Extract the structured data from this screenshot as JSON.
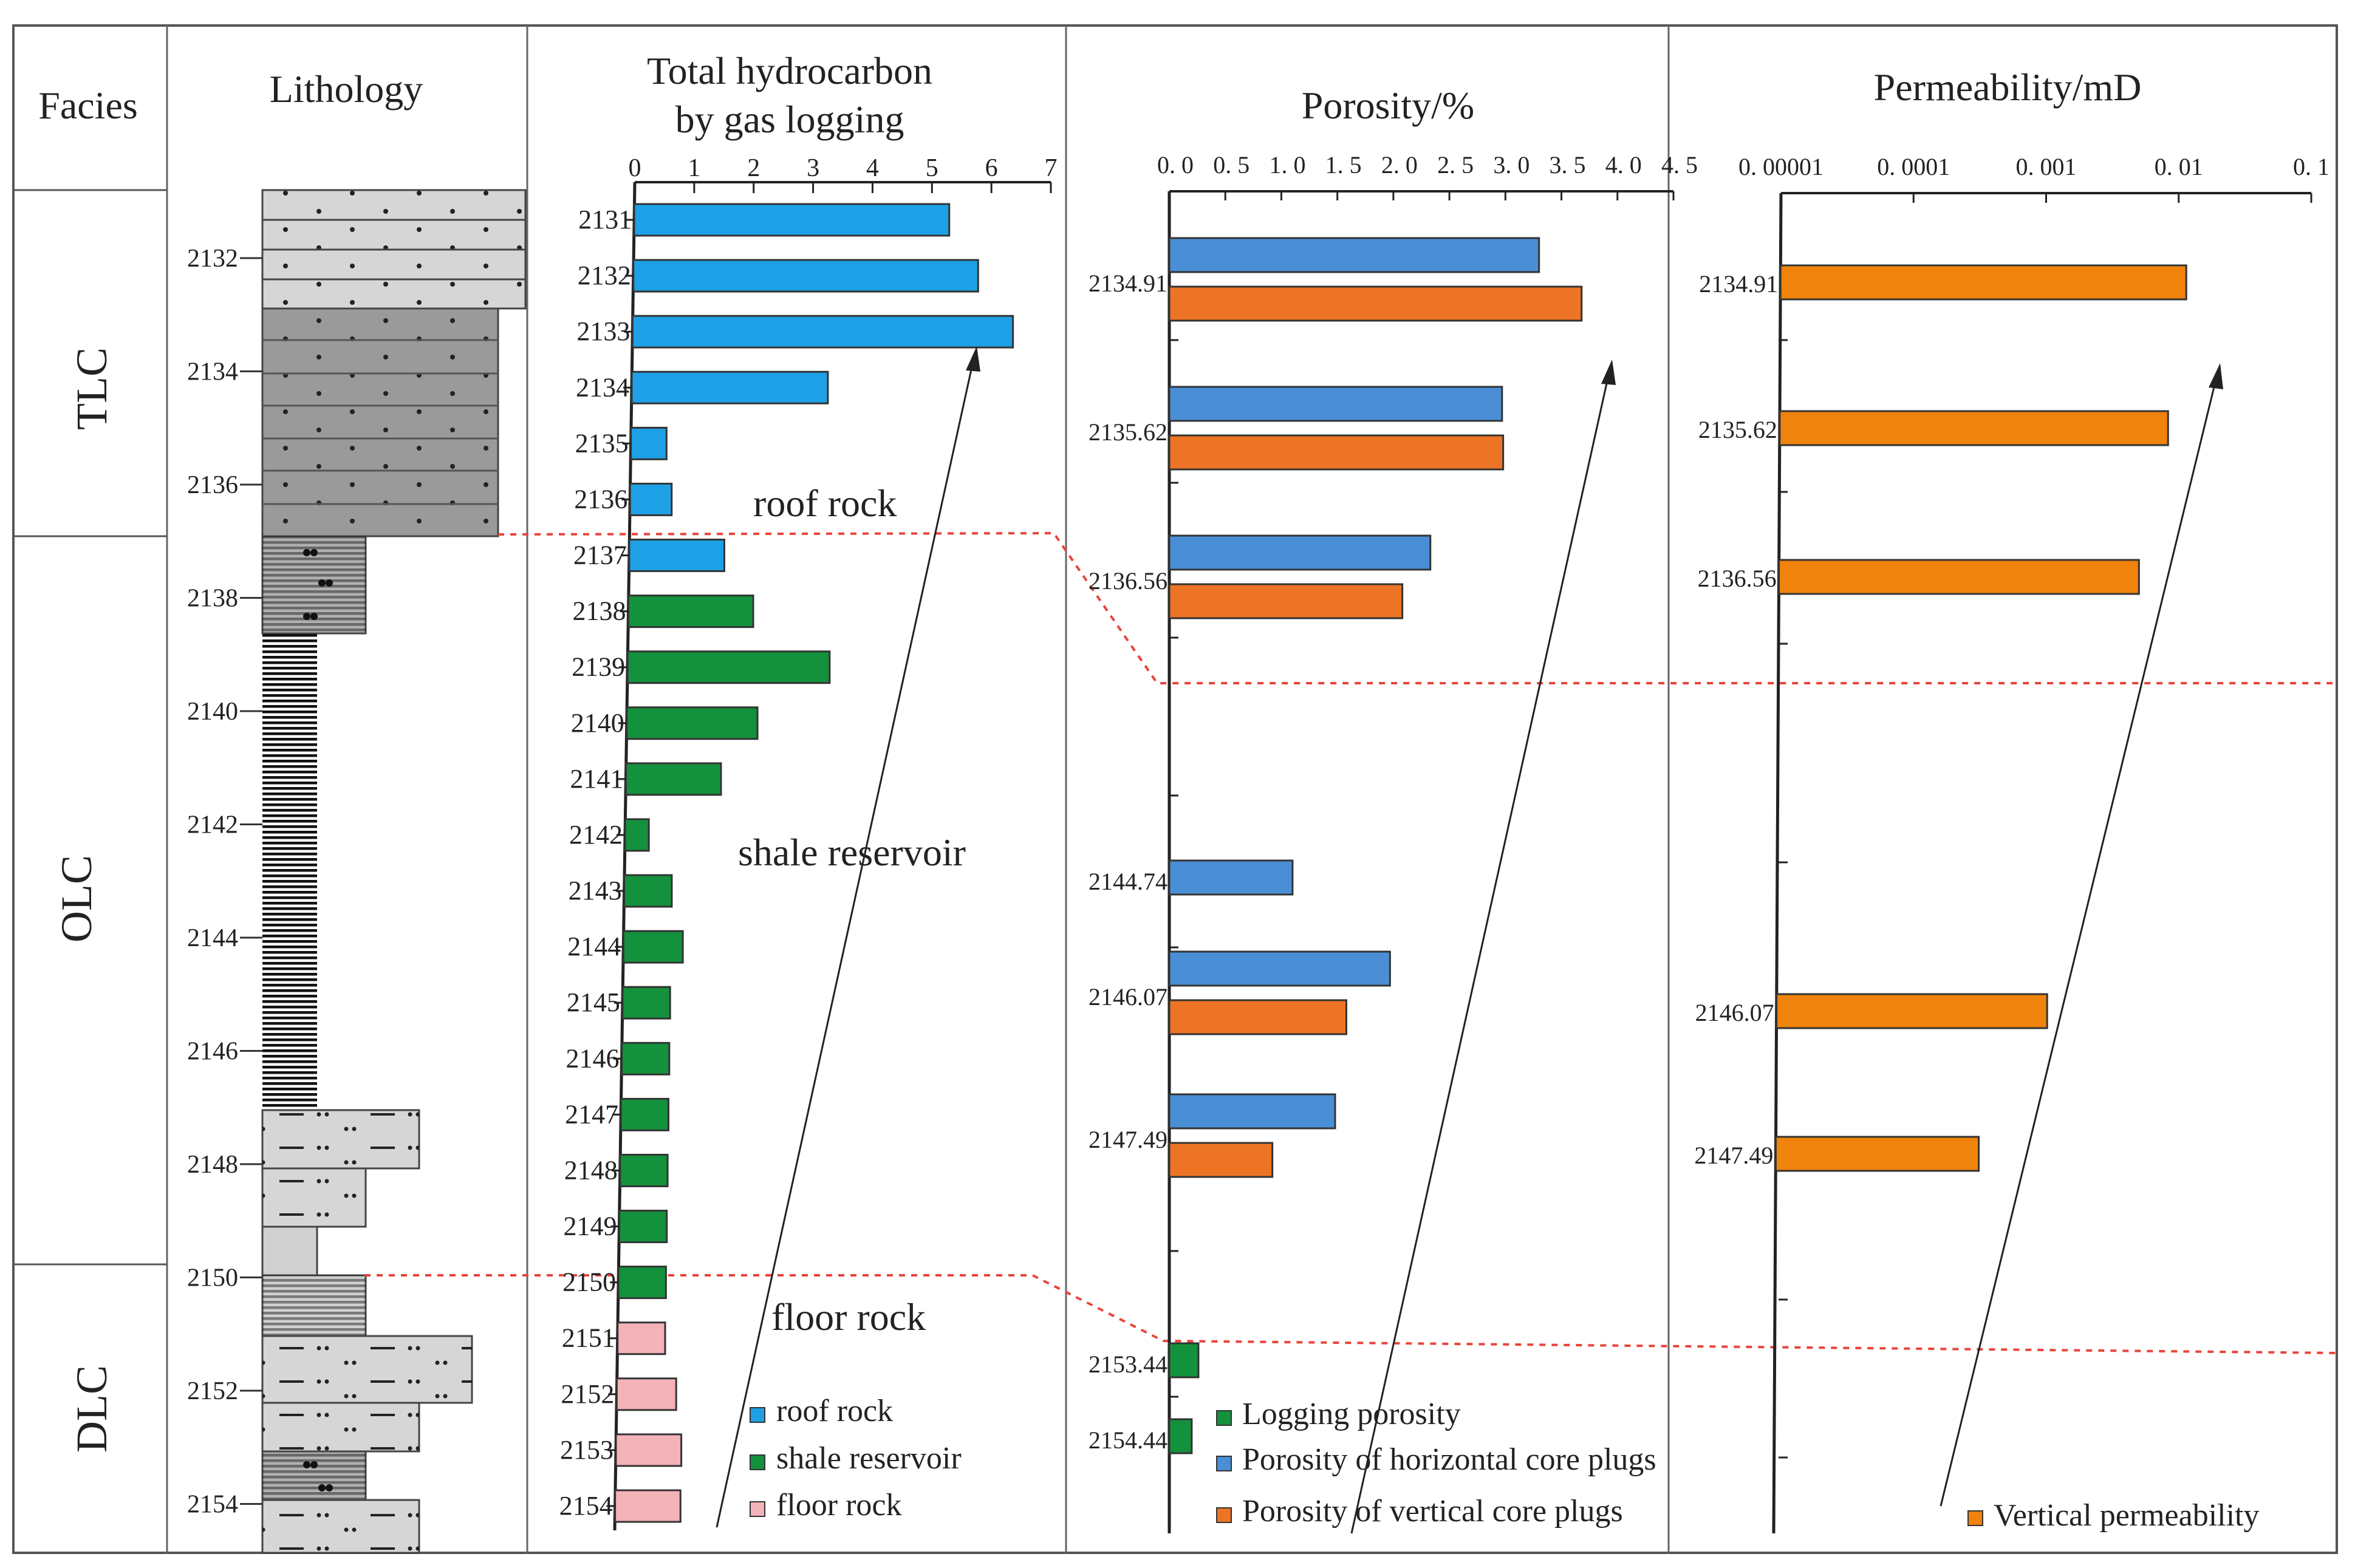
{
  "headers": {
    "facies": "Facies",
    "lithology": "Lithology",
    "thc_line1": "Total  hydrocarbon",
    "thc_line2": "by  gas  logging",
    "porosity": "Porosity/%",
    "permeability": "Permeability/mD"
  },
  "facies": [
    "TLC",
    "OLC",
    "DLC"
  ],
  "lithology_depth_ticks": [
    "2132",
    "2134",
    "2136",
    "2138",
    "2140",
    "2142",
    "2144",
    "2146",
    "2148",
    "2150",
    "2152",
    "2154"
  ],
  "zone_labels": {
    "roof": "roof rock",
    "shale": "shale reservoir",
    "floor": "floor rock"
  },
  "colors": {
    "roof": "#1ea0e6",
    "shale": "#14913c",
    "floor": "#f4b3b8",
    "porosity_horizontal": "#4a8fd6",
    "porosity_vertical": "#ec7424",
    "logging_porosity": "#14913c",
    "vertical_permeability": "#f0830c",
    "dashed_line": "#e8453c"
  },
  "chart_data": [
    {
      "type": "bar",
      "title": "Total  hydrocarbon by  gas  logging",
      "orientation": "horizontal",
      "xlim": [
        0,
        7
      ],
      "x_ticks": [
        "0",
        "1",
        "2",
        "3",
        "4",
        "5",
        "6",
        "7"
      ],
      "categories": [
        "2131",
        "2132",
        "2133",
        "2134",
        "2135",
        "2136",
        "2137",
        "2138",
        "2139",
        "2140",
        "2141",
        "2142",
        "2143",
        "2144",
        "2145",
        "2146",
        "2147",
        "2148",
        "2149",
        "2150",
        "2151",
        "2152",
        "2153",
        "2154"
      ],
      "values": [
        5.3,
        5.8,
        6.4,
        3.3,
        0.6,
        0.7,
        1.6,
        2.1,
        3.4,
        2.2,
        1.6,
        0.4,
        0.8,
        1.0,
        0.8,
        0.8,
        0.8,
        0.8,
        0.8,
        0.8,
        0.8,
        1.0,
        1.1,
        1.1
      ],
      "groups": [
        "roof",
        "roof",
        "roof",
        "roof",
        "roof",
        "roof",
        "roof",
        "shale",
        "shale",
        "shale",
        "shale",
        "shale",
        "shale",
        "shale",
        "shale",
        "shale",
        "shale",
        "shale",
        "shale",
        "shale",
        "floor",
        "floor",
        "floor",
        "floor"
      ],
      "legend": [
        {
          "key": "roof",
          "label": "roof rock"
        },
        {
          "key": "shale",
          "label": "shale reservoir"
        },
        {
          "key": "floor",
          "label": "floor rock"
        }
      ]
    },
    {
      "type": "bar",
      "title": "Porosity/%",
      "orientation": "horizontal",
      "xlim": [
        0,
        4.5
      ],
      "x_ticks": [
        "0. 0",
        "0. 5",
        "1. 0",
        "1. 5",
        "2. 0",
        "2. 5",
        "3. 0",
        "3. 5",
        "4. 0",
        "4. 5"
      ],
      "depths": [
        "2134.91",
        "2135.62",
        "2136.56",
        "2144.74",
        "2146.07",
        "2147.49",
        "2153.44",
        "2154.44"
      ],
      "series": [
        {
          "key": "porosity_horizontal",
          "name": "Porosity of horizontal core plugs",
          "values": [
            3.3,
            2.97,
            2.33,
            1.1,
            1.97,
            1.48,
            null,
            null
          ]
        },
        {
          "key": "porosity_vertical",
          "name": "Porosity of vertical core plugs",
          "values": [
            3.68,
            2.98,
            2.08,
            null,
            1.58,
            0.92,
            null,
            null
          ]
        },
        {
          "key": "logging_porosity",
          "name": "Logging porosity",
          "values": [
            null,
            null,
            null,
            null,
            null,
            null,
            0.26,
            0.2
          ]
        }
      ],
      "legend_order": [
        "logging_porosity",
        "porosity_horizontal",
        "porosity_vertical"
      ]
    },
    {
      "type": "bar",
      "title": "Permeability/mD",
      "orientation": "horizontal",
      "xscale": "log",
      "xlim": [
        1e-05,
        0.1
      ],
      "x_ticks": [
        "0. 00001",
        "0. 0001",
        "0. 001",
        "0. 01",
        "0. 1"
      ],
      "depths": [
        "2134.91",
        "2135.62",
        "2136.56",
        "2146.07",
        "2147.49"
      ],
      "series": [
        {
          "key": "vertical_permeability",
          "name": "Vertical permeability",
          "values": [
            0.0115,
            0.0085,
            0.0052,
            0.0011,
            0.00034
          ]
        }
      ]
    }
  ]
}
